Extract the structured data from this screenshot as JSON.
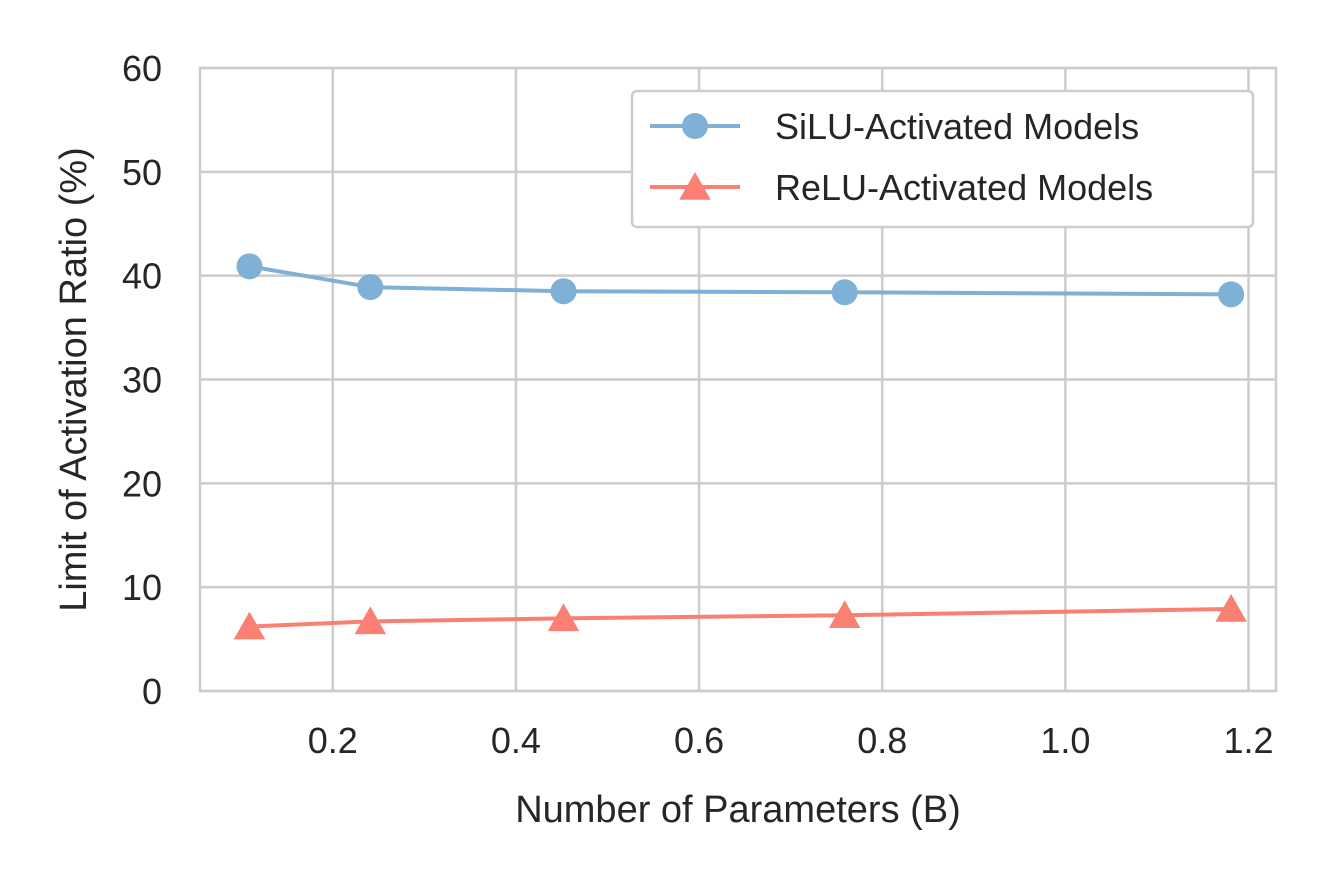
{
  "chart_data": {
    "type": "line",
    "title": "",
    "xlabel": "Number of Parameters (B)",
    "ylabel": "Limit of Activation Ratio (%)",
    "xlim": [
      0.055,
      1.23
    ],
    "ylim": [
      0,
      60
    ],
    "xticks": [
      0.2,
      0.4,
      0.6,
      0.8,
      1.0,
      1.2
    ],
    "xtick_labels": [
      "0.2",
      "0.4",
      "0.6",
      "0.8",
      "1.0",
      "1.2"
    ],
    "yticks": [
      0,
      10,
      20,
      30,
      40,
      50,
      60
    ],
    "ytick_labels": [
      "0",
      "10",
      "20",
      "30",
      "40",
      "50",
      "60"
    ],
    "grid": true,
    "legend_position": "top-right",
    "series": [
      {
        "name": "SiLU-Activated Models",
        "marker": "circle",
        "color": "#7fb0d5",
        "x": [
          0.109,
          0.241,
          0.452,
          0.759,
          1.181
        ],
        "y": [
          40.9,
          38.9,
          38.5,
          38.4,
          38.2
        ]
      },
      {
        "name": "ReLU-Activated Models",
        "marker": "triangle",
        "color": "#f98072",
        "x": [
          0.109,
          0.241,
          0.452,
          0.759,
          1.181
        ],
        "y": [
          6.2,
          6.7,
          7.0,
          7.3,
          7.9
        ]
      }
    ]
  }
}
